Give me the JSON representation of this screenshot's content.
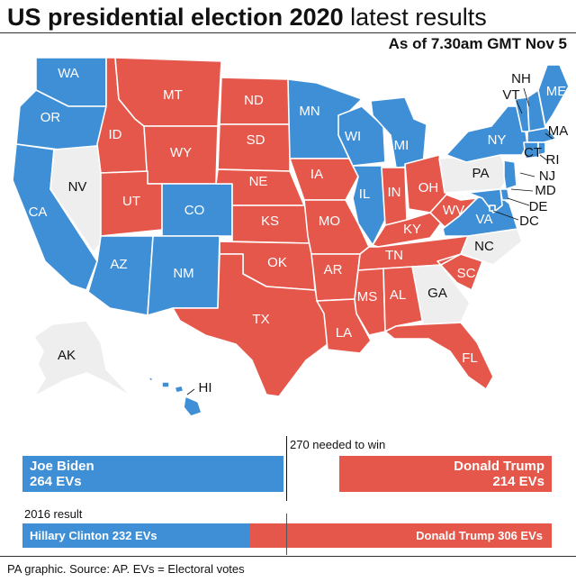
{
  "title_bold": "US presidential election 2020",
  "title_light": "latest results",
  "as_of": "As of 7.30am GMT Nov 5",
  "colors": {
    "biden": "#3f8fd6",
    "trump": "#e4574a",
    "undecided": "#eeeeee"
  },
  "states": [
    {
      "code": "WA",
      "winner": "biden"
    },
    {
      "code": "OR",
      "winner": "biden"
    },
    {
      "code": "CA",
      "winner": "biden"
    },
    {
      "code": "NV",
      "winner": "undecided"
    },
    {
      "code": "ID",
      "winner": "trump"
    },
    {
      "code": "MT",
      "winner": "trump"
    },
    {
      "code": "WY",
      "winner": "trump"
    },
    {
      "code": "UT",
      "winner": "trump"
    },
    {
      "code": "CO",
      "winner": "biden"
    },
    {
      "code": "AZ",
      "winner": "biden"
    },
    {
      "code": "NM",
      "winner": "biden"
    },
    {
      "code": "ND",
      "winner": "trump"
    },
    {
      "code": "SD",
      "winner": "trump"
    },
    {
      "code": "NE",
      "winner": "trump"
    },
    {
      "code": "KS",
      "winner": "trump"
    },
    {
      "code": "OK",
      "winner": "trump"
    },
    {
      "code": "TX",
      "winner": "trump"
    },
    {
      "code": "MN",
      "winner": "biden"
    },
    {
      "code": "IA",
      "winner": "trump"
    },
    {
      "code": "MO",
      "winner": "trump"
    },
    {
      "code": "AR",
      "winner": "trump"
    },
    {
      "code": "LA",
      "winner": "trump"
    },
    {
      "code": "WI",
      "winner": "biden"
    },
    {
      "code": "IL",
      "winner": "biden"
    },
    {
      "code": "MI",
      "winner": "biden"
    },
    {
      "code": "IN",
      "winner": "trump"
    },
    {
      "code": "OH",
      "winner": "trump"
    },
    {
      "code": "KY",
      "winner": "trump"
    },
    {
      "code": "TN",
      "winner": "trump"
    },
    {
      "code": "MS",
      "winner": "trump"
    },
    {
      "code": "AL",
      "winner": "trump"
    },
    {
      "code": "GA",
      "winner": "undecided"
    },
    {
      "code": "FL",
      "winner": "trump"
    },
    {
      "code": "SC",
      "winner": "trump"
    },
    {
      "code": "NC",
      "winner": "undecided"
    },
    {
      "code": "VA",
      "winner": "biden"
    },
    {
      "code": "WV",
      "winner": "trump"
    },
    {
      "code": "PA",
      "winner": "undecided"
    },
    {
      "code": "NY",
      "winner": "biden"
    },
    {
      "code": "VT",
      "winner": "biden"
    },
    {
      "code": "NH",
      "winner": "biden"
    },
    {
      "code": "ME",
      "winner": "biden"
    },
    {
      "code": "MA",
      "winner": "biden"
    },
    {
      "code": "CT",
      "winner": "biden"
    },
    {
      "code": "RI",
      "winner": "biden"
    },
    {
      "code": "NJ",
      "winner": "biden"
    },
    {
      "code": "DE",
      "winner": "biden"
    },
    {
      "code": "MD",
      "winner": "biden"
    },
    {
      "code": "DC",
      "winner": "biden"
    },
    {
      "code": "AK",
      "winner": "undecided"
    },
    {
      "code": "HI",
      "winner": "biden"
    }
  ],
  "threshold_label": "270 needed to win",
  "biden": {
    "name": "Joe Biden",
    "evs": "264 EVs"
  },
  "trump": {
    "name": "Donald Trump",
    "evs": "214 EVs"
  },
  "result_2016_label": "2016 result",
  "clinton_2016": "Hillary Clinton 232 EVs",
  "trump_2016": "Donald Trump 306 EVs",
  "footer": "PA graphic. Source: AP. EVs = Electoral votes"
}
